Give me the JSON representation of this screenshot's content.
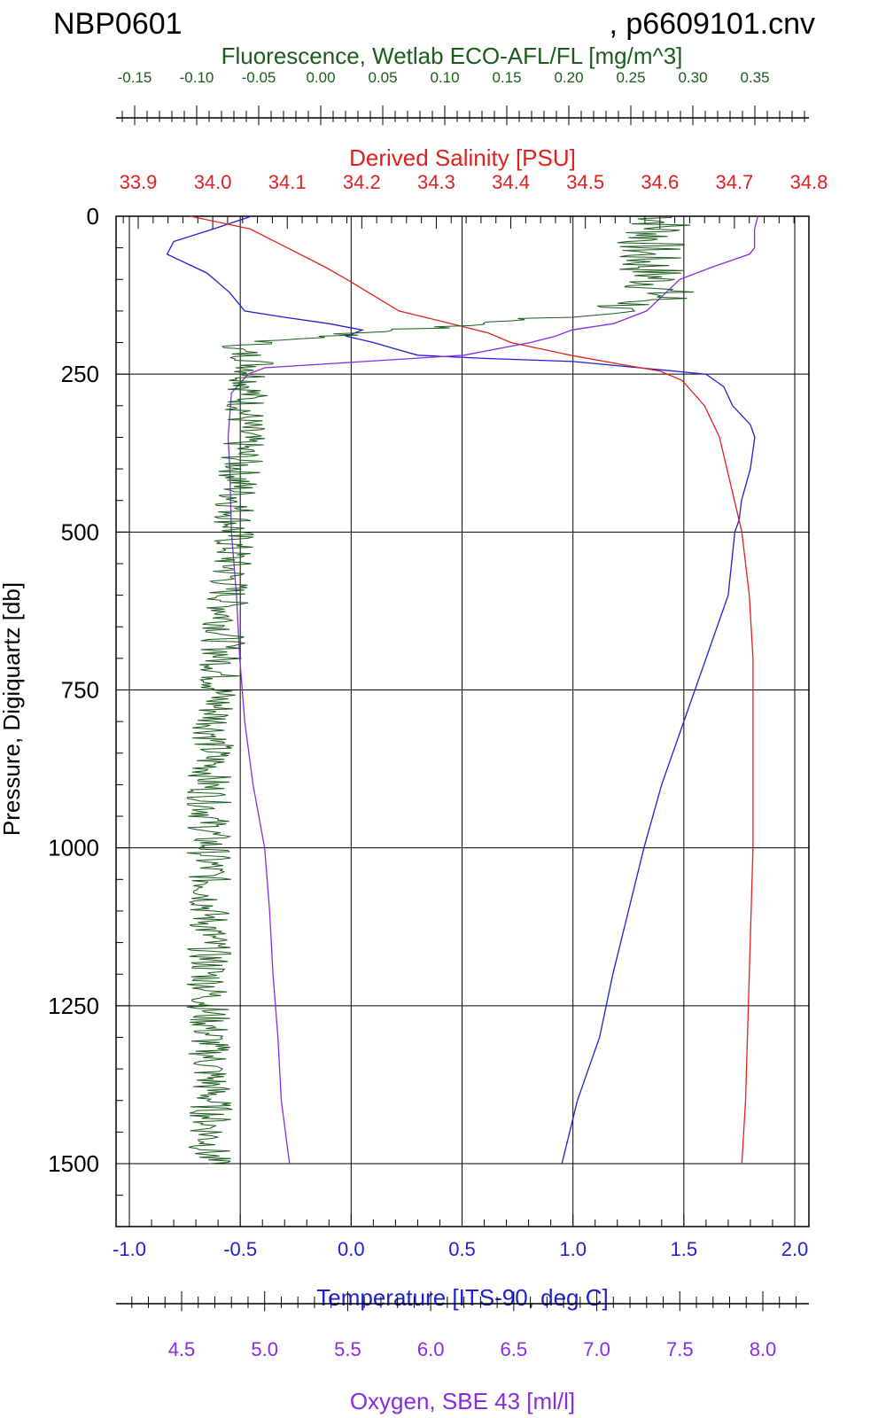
{
  "header": {
    "cruise": "NBP0601",
    "file": ", p6609101.cnv"
  },
  "chart_data": {
    "type": "line",
    "title": "NBP0601 , p6609101.cnv",
    "grid": true,
    "y_axis": {
      "label": "Pressure, Digiquartz [db]",
      "range": [
        0,
        1600
      ],
      "inverted": true,
      "ticks": [
        "0",
        "250",
        "500",
        "750",
        "1000",
        "1250",
        "1500"
      ]
    },
    "axes": {
      "fluorescence": {
        "label": "Fluorescence, Wetlab ECO-AFL/FL [mg/m^3]",
        "position": "top-outer",
        "color": "#1a5c1a",
        "range": [
          -0.15,
          0.35
        ],
        "ticks": [
          "-0.15",
          "-0.10",
          "-0.05",
          "0.00",
          "0.05",
          "0.10",
          "0.15",
          "0.20",
          "0.25",
          "0.30",
          "0.35"
        ]
      },
      "salinity": {
        "label": "Derived Salinity [PSU]",
        "position": "top-inner",
        "color": "#e02020",
        "range": [
          33.9,
          34.8
        ],
        "ticks": [
          "33.9",
          "34.0",
          "34.1",
          "34.2",
          "34.3",
          "34.4",
          "34.5",
          "34.6",
          "34.7",
          "34.8"
        ]
      },
      "temperature": {
        "label": "Temperature [ITS-90, deg C]",
        "position": "bottom-inner",
        "color": "#1f1fd0",
        "range": [
          -1.0,
          2.0
        ],
        "ticks": [
          "-1.0",
          "-0.5",
          "0.0",
          "0.5",
          "1.0",
          "1.5",
          "2.0"
        ]
      },
      "oxygen": {
        "label": "Oxygen, SBE 43 [ml/l]",
        "position": "bottom-outer",
        "color": "#8a2be2",
        "range": [
          4.5,
          8.0
        ],
        "ticks": [
          "4.5",
          "5.0",
          "5.5",
          "6.0",
          "6.5",
          "7.0",
          "7.5",
          "8.0"
        ]
      }
    },
    "series": [
      {
        "axis": "temperature",
        "color": "#1f1fd0",
        "points": [
          [
            0,
            -0.45
          ],
          [
            20,
            -0.62
          ],
          [
            40,
            -0.8
          ],
          [
            60,
            -0.83
          ],
          [
            90,
            -0.65
          ],
          [
            120,
            -0.55
          ],
          [
            150,
            -0.48
          ],
          [
            160,
            -0.3
          ],
          [
            170,
            -0.1
          ],
          [
            180,
            0.05
          ],
          [
            190,
            -0.02
          ],
          [
            200,
            0.1
          ],
          [
            210,
            0.2
          ],
          [
            220,
            0.3
          ],
          [
            225,
            0.6
          ],
          [
            230,
            1.0
          ],
          [
            240,
            1.3
          ],
          [
            250,
            1.6
          ],
          [
            270,
            1.68
          ],
          [
            300,
            1.72
          ],
          [
            330,
            1.8
          ],
          [
            350,
            1.82
          ],
          [
            400,
            1.8
          ],
          [
            450,
            1.76
          ],
          [
            480,
            1.75
          ],
          [
            500,
            1.73
          ],
          [
            600,
            1.7
          ],
          [
            700,
            1.6
          ],
          [
            800,
            1.5
          ],
          [
            900,
            1.4
          ],
          [
            1000,
            1.32
          ],
          [
            1100,
            1.25
          ],
          [
            1200,
            1.18
          ],
          [
            1300,
            1.12
          ],
          [
            1400,
            1.02
          ],
          [
            1500,
            0.95
          ]
        ]
      },
      {
        "axis": "salinity",
        "color": "#e02020",
        "points": [
          [
            0,
            33.97
          ],
          [
            20,
            34.05
          ],
          [
            50,
            34.1
          ],
          [
            80,
            34.15
          ],
          [
            100,
            34.18
          ],
          [
            150,
            34.25
          ],
          [
            170,
            34.32
          ],
          [
            185,
            34.37
          ],
          [
            200,
            34.4
          ],
          [
            220,
            34.48
          ],
          [
            235,
            34.55
          ],
          [
            245,
            34.6
          ],
          [
            260,
            34.63
          ],
          [
            300,
            34.66
          ],
          [
            350,
            34.68
          ],
          [
            400,
            34.69
          ],
          [
            450,
            34.7
          ],
          [
            500,
            34.71
          ],
          [
            600,
            34.72
          ],
          [
            700,
            34.725
          ],
          [
            800,
            34.725
          ],
          [
            1000,
            34.725
          ],
          [
            1200,
            34.72
          ],
          [
            1400,
            34.715
          ],
          [
            1500,
            34.71
          ]
        ]
      },
      {
        "axis": "oxygen",
        "color": "#8a2be2",
        "points": [
          [
            0,
            7.97
          ],
          [
            20,
            7.95
          ],
          [
            50,
            7.95
          ],
          [
            60,
            7.92
          ],
          [
            80,
            7.7
          ],
          [
            100,
            7.5
          ],
          [
            150,
            7.3
          ],
          [
            170,
            7.1
          ],
          [
            180,
            6.85
          ],
          [
            190,
            6.75
          ],
          [
            200,
            6.6
          ],
          [
            220,
            6.2
          ],
          [
            230,
            5.6
          ],
          [
            240,
            5.0
          ],
          [
            250,
            4.9
          ],
          [
            280,
            4.8
          ],
          [
            350,
            4.78
          ],
          [
            400,
            4.79
          ],
          [
            500,
            4.8
          ],
          [
            600,
            4.83
          ],
          [
            700,
            4.85
          ],
          [
            800,
            4.88
          ],
          [
            900,
            4.93
          ],
          [
            1000,
            5.0
          ],
          [
            1100,
            5.03
          ],
          [
            1200,
            5.05
          ],
          [
            1300,
            5.08
          ],
          [
            1400,
            5.1
          ],
          [
            1500,
            5.15
          ]
        ]
      },
      {
        "axis": "fluorescence",
        "color": "#1a5c1a",
        "noise": true,
        "points": [
          [
            0,
            0.28
          ],
          [
            30,
            0.27
          ],
          [
            60,
            0.26
          ],
          [
            100,
            0.27
          ],
          [
            130,
            0.275
          ],
          [
            160,
            0.2
          ],
          [
            175,
            0.1
          ],
          [
            190,
            0.0
          ],
          [
            200,
            -0.05
          ],
          [
            210,
            -0.07
          ],
          [
            230,
            -0.05
          ],
          [
            250,
            -0.055
          ],
          [
            300,
            -0.06
          ],
          [
            400,
            -0.065
          ],
          [
            500,
            -0.07
          ],
          [
            600,
            -0.075
          ],
          [
            700,
            -0.08
          ],
          [
            800,
            -0.085
          ],
          [
            900,
            -0.09
          ],
          [
            1000,
            -0.09
          ],
          [
            1100,
            -0.09
          ],
          [
            1200,
            -0.09
          ],
          [
            1300,
            -0.09
          ],
          [
            1400,
            -0.088
          ],
          [
            1500,
            -0.09
          ]
        ]
      }
    ]
  }
}
